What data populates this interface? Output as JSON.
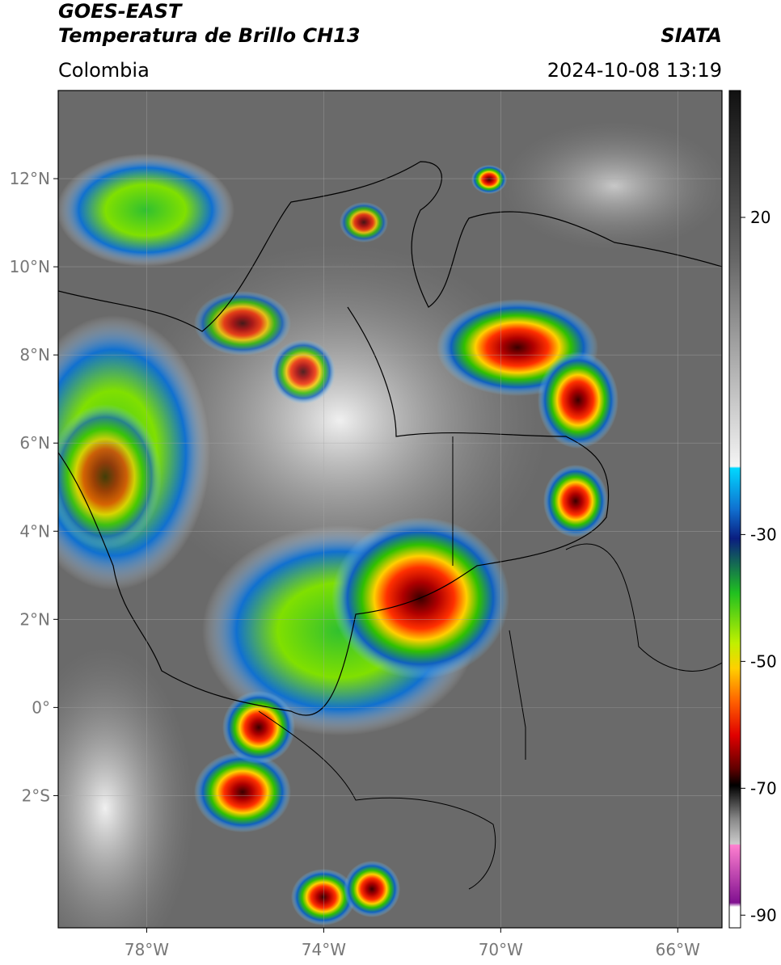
{
  "header": {
    "title": "GOES-EAST",
    "subtitle": "Temperatura de Brillo CH13",
    "source": "SIATA",
    "region": "Colombia",
    "datetime": "2024-10-08 13:19"
  },
  "map": {
    "latlim": [
      -5,
      14
    ],
    "lonlim": [
      -80,
      -65
    ],
    "latticks": [
      {
        "value": 12,
        "label": "12°N"
      },
      {
        "value": 10,
        "label": "10°N"
      },
      {
        "value": 8,
        "label": "8°N"
      },
      {
        "value": 6,
        "label": "6°N"
      },
      {
        "value": 4,
        "label": "4°N"
      },
      {
        "value": 2,
        "label": "2°N"
      },
      {
        "value": 0,
        "label": "0°"
      },
      {
        "value": -2,
        "label": "2°S"
      }
    ],
    "lonticks": [
      {
        "value": -78,
        "label": "78°W"
      },
      {
        "value": -74,
        "label": "74°W"
      },
      {
        "value": -70,
        "label": "70°W"
      },
      {
        "value": -66,
        "label": "66°W"
      }
    ],
    "grid": true
  },
  "colorbar": {
    "lim": [
      -92,
      40
    ],
    "ticks": [
      20,
      -30,
      -50,
      -70,
      -90
    ]
  }
}
